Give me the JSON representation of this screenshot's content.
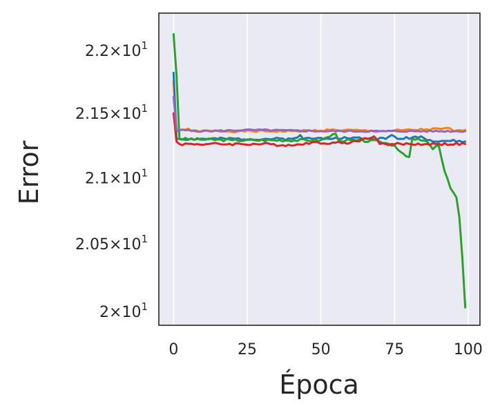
{
  "chart_data": {
    "type": "line",
    "xlabel": "Época",
    "ylabel": "Error",
    "xlim": [
      -5,
      104
    ],
    "ylim": [
      19.9,
      22.3
    ],
    "y_scale": "log",
    "grid": true,
    "grid_axis": "x",
    "legend": "none",
    "x_ticks": [
      0,
      25,
      50,
      75,
      100
    ],
    "y_ticks": [
      20.0,
      20.5,
      21.0,
      21.5,
      22.0
    ],
    "y_tick_labels": [
      {
        "mantissa": "2",
        "exponent": "1"
      },
      {
        "mantissa": "2.05",
        "exponent": "1"
      },
      {
        "mantissa": "2.1",
        "exponent": "1"
      },
      {
        "mantissa": "2.15",
        "exponent": "1"
      },
      {
        "mantissa": "2.2",
        "exponent": "1"
      }
    ],
    "colors": {
      "plot_bg": "#eaeaf2",
      "grid": "#ffffff",
      "frame": "#262626",
      "text": "#262626"
    },
    "series": [
      {
        "color": "#ff7f0e",
        "keypoints": [
          [
            0,
            21.75
          ],
          [
            1,
            21.36
          ],
          [
            5,
            21.38
          ],
          [
            6,
            21.36
          ],
          [
            40,
            21.36
          ],
          [
            55,
            21.37
          ],
          [
            70,
            21.36
          ],
          [
            94,
            21.38
          ],
          [
            95,
            21.36
          ],
          [
            99,
            21.37
          ]
        ],
        "noise": 0.008,
        "seed": 1
      },
      {
        "color": "#1f77b4",
        "keypoints": [
          [
            0,
            21.82
          ],
          [
            1,
            21.3
          ],
          [
            40,
            21.3
          ],
          [
            43,
            21.33
          ],
          [
            44,
            21.3
          ],
          [
            55,
            21.31
          ],
          [
            72,
            21.3
          ],
          [
            74,
            21.33
          ],
          [
            76,
            21.3
          ],
          [
            84,
            21.32
          ],
          [
            86,
            21.29
          ],
          [
            99,
            21.28
          ]
        ],
        "noise": 0.01,
        "seed": 2
      },
      {
        "color": "#2ca02c",
        "keypoints": [
          [
            0,
            22.13
          ],
          [
            1,
            21.8
          ],
          [
            2,
            21.3
          ],
          [
            20,
            21.29
          ],
          [
            50,
            21.29
          ],
          [
            55,
            21.34
          ],
          [
            56,
            21.29
          ],
          [
            70,
            21.28
          ],
          [
            75,
            21.25
          ],
          [
            77,
            21.2
          ],
          [
            80,
            21.16
          ],
          [
            81,
            21.3
          ],
          [
            86,
            21.28
          ],
          [
            88,
            21.22
          ],
          [
            90,
            21.25
          ],
          [
            92,
            21.05
          ],
          [
            94,
            20.92
          ],
          [
            96,
            20.85
          ],
          [
            97,
            20.7
          ],
          [
            98,
            20.4
          ],
          [
            99,
            20.03
          ]
        ],
        "noise": 0.01,
        "seed": 3
      },
      {
        "color": "#d62728",
        "keypoints": [
          [
            0,
            21.5
          ],
          [
            1,
            21.28
          ],
          [
            2,
            21.26
          ],
          [
            30,
            21.26
          ],
          [
            41,
            21.25
          ],
          [
            45,
            21.27
          ],
          [
            60,
            21.27
          ],
          [
            68,
            21.32
          ],
          [
            70,
            21.26
          ],
          [
            99,
            21.26
          ]
        ],
        "noise": 0.01,
        "seed": 4
      },
      {
        "color": "#9467bd",
        "keypoints": [
          [
            0,
            21.63
          ],
          [
            1,
            21.37
          ],
          [
            10,
            21.36
          ],
          [
            27,
            21.37
          ],
          [
            50,
            21.36
          ],
          [
            70,
            21.36
          ],
          [
            99,
            21.36
          ]
        ],
        "noise": 0.006,
        "seed": 5
      }
    ]
  }
}
